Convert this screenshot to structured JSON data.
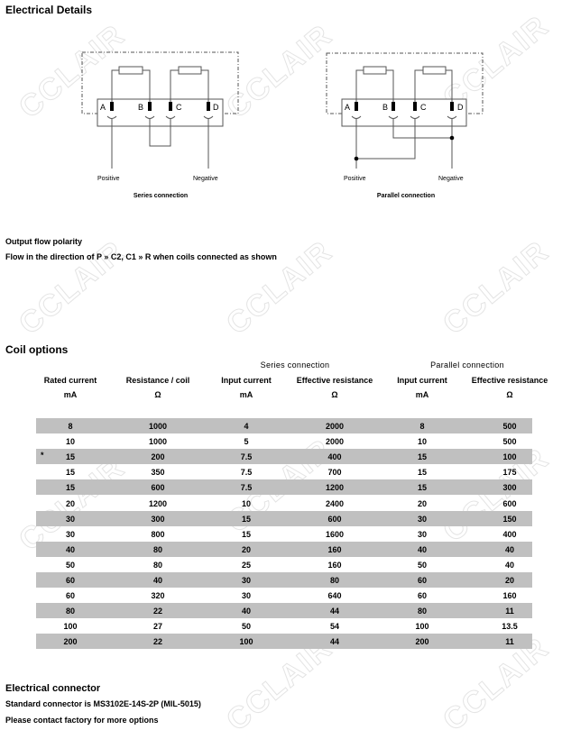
{
  "electrical_details": {
    "title": "Electrical Details",
    "series": {
      "terminals": [
        "A",
        "B",
        "C",
        "D"
      ],
      "positive": "Positive",
      "negative": "Negative",
      "caption": "Series connection"
    },
    "parallel": {
      "terminals": [
        "A",
        "B",
        "C",
        "D"
      ],
      "positive": "Positive",
      "negative": "Negative",
      "caption": "Parallel connection"
    }
  },
  "output_flow": {
    "title": "Output flow polarity",
    "text": "Flow in the direction of P » C2, C1 » R when coils connected as shown"
  },
  "coil_options": {
    "title": "Coil options",
    "group_headers": [
      "Series connection",
      "Parallel connection"
    ],
    "columns": [
      {
        "label": "Rated current",
        "unit": "mA"
      },
      {
        "label": "Resistance / coil",
        "unit": "Ω"
      },
      {
        "label": "Input current",
        "unit": "mA"
      },
      {
        "label": "Effective resistance",
        "unit": "Ω"
      },
      {
        "label": "Input current",
        "unit": "mA"
      },
      {
        "label": "Effective resistance",
        "unit": "Ω"
      }
    ],
    "rows": [
      {
        "mark": "",
        "cells": [
          "8",
          "1000",
          "4",
          "2000",
          "8",
          "500"
        ]
      },
      {
        "mark": "",
        "cells": [
          "10",
          "1000",
          "5",
          "2000",
          "10",
          "500"
        ]
      },
      {
        "mark": "*",
        "cells": [
          "15",
          "200",
          "7.5",
          "400",
          "15",
          "100"
        ]
      },
      {
        "mark": "",
        "cells": [
          "15",
          "350",
          "7.5",
          "700",
          "15",
          "175"
        ]
      },
      {
        "mark": "",
        "cells": [
          "15",
          "600",
          "7.5",
          "1200",
          "15",
          "300"
        ]
      },
      {
        "mark": "",
        "cells": [
          "20",
          "1200",
          "10",
          "2400",
          "20",
          "600"
        ]
      },
      {
        "mark": "",
        "cells": [
          "30",
          "300",
          "15",
          "600",
          "30",
          "150"
        ]
      },
      {
        "mark": "",
        "cells": [
          "30",
          "800",
          "15",
          "1600",
          "30",
          "400"
        ]
      },
      {
        "mark": "",
        "cells": [
          "40",
          "80",
          "20",
          "160",
          "40",
          "40"
        ]
      },
      {
        "mark": "",
        "cells": [
          "50",
          "80",
          "25",
          "160",
          "50",
          "40"
        ]
      },
      {
        "mark": "",
        "cells": [
          "60",
          "40",
          "30",
          "80",
          "60",
          "20"
        ]
      },
      {
        "mark": "",
        "cells": [
          "60",
          "320",
          "30",
          "640",
          "60",
          "160"
        ]
      },
      {
        "mark": "",
        "cells": [
          "80",
          "22",
          "40",
          "44",
          "80",
          "11"
        ]
      },
      {
        "mark": "",
        "cells": [
          "100",
          "27",
          "50",
          "54",
          "100",
          "13.5"
        ]
      },
      {
        "mark": "",
        "cells": [
          "200",
          "22",
          "100",
          "44",
          "200",
          "11"
        ]
      }
    ],
    "row_fill": "#c0c0c0"
  },
  "connector": {
    "title": "Electrical connector",
    "line1": "Standard connector is MS3102E-14S-2P (MIL-5015)",
    "line2": "Please contact factory for more options"
  },
  "watermark": "CCLAIR"
}
